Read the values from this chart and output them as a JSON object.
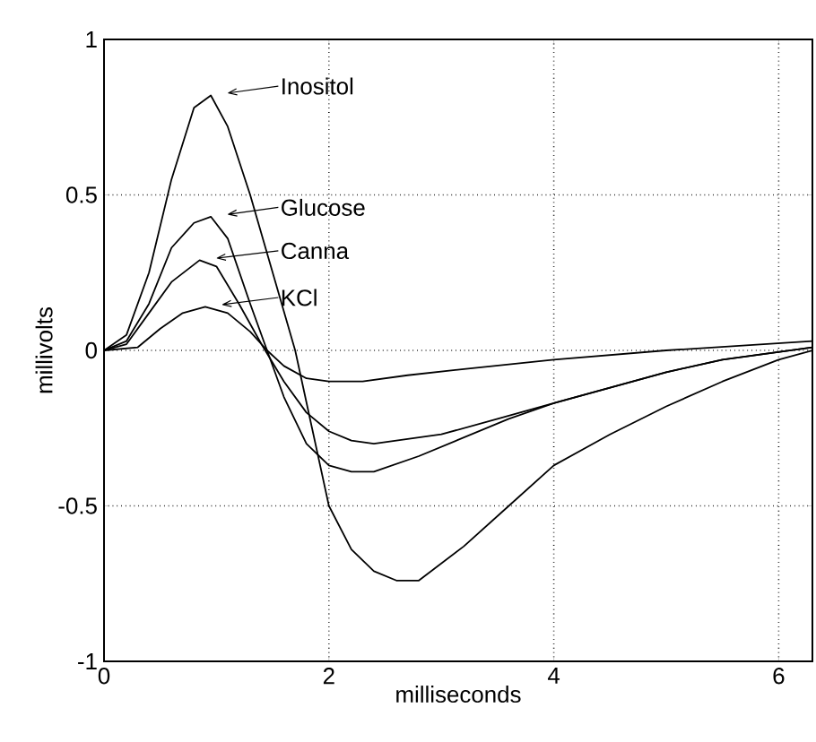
{
  "chart_data": {
    "type": "line",
    "xlabel": "milliseconds",
    "ylabel": "millivolts",
    "xlim": [
      0,
      6.3
    ],
    "ylim": [
      -1,
      1
    ],
    "xticks": [
      0,
      2,
      4,
      6
    ],
    "yticks": [
      -1,
      -0.5,
      0,
      0.5,
      1
    ],
    "grid": true,
    "legend": "top left",
    "line_style": "solid",
    "marker": "none",
    "series": [
      {
        "name": "Inositol",
        "color": "#000000",
        "x": [
          0,
          0.2,
          0.4,
          0.6,
          0.8,
          0.95,
          1.1,
          1.3,
          1.5,
          1.7,
          1.85,
          2.0,
          2.2,
          2.4,
          2.6,
          2.8,
          3.2,
          3.6,
          4,
          4.5,
          5,
          5.5,
          6,
          6.3
        ],
        "values": [
          0,
          0.05,
          0.25,
          0.55,
          0.78,
          0.82,
          0.72,
          0.5,
          0.25,
          0,
          -0.25,
          -0.5,
          -0.64,
          -0.71,
          -0.74,
          -0.74,
          -0.63,
          -0.5,
          -0.37,
          -0.27,
          -0.18,
          -0.1,
          -0.03,
          0
        ]
      },
      {
        "name": "Glucose",
        "color": "#000000",
        "x": [
          0,
          0.2,
          0.4,
          0.6,
          0.8,
          0.95,
          1.1,
          1.3,
          1.45,
          1.6,
          1.8,
          2.0,
          2.2,
          2.4,
          2.8,
          3.2,
          3.6,
          4,
          4.5,
          5,
          5.5,
          6.3
        ],
        "values": [
          0,
          0.03,
          0.15,
          0.33,
          0.41,
          0.43,
          0.36,
          0.15,
          0,
          -0.15,
          -0.3,
          -0.37,
          -0.39,
          -0.39,
          -0.34,
          -0.28,
          -0.22,
          -0.17,
          -0.12,
          -0.07,
          -0.03,
          0.01
        ]
      },
      {
        "name": "Canna",
        "color": "#000000",
        "x": [
          0,
          0.2,
          0.4,
          0.6,
          0.85,
          1.0,
          1.2,
          1.4,
          1.6,
          1.8,
          2.0,
          2.2,
          2.4,
          2.6,
          3.0,
          3.5,
          4,
          4.5,
          5,
          5.5,
          6.3
        ],
        "values": [
          0,
          0.02,
          0.12,
          0.22,
          0.29,
          0.27,
          0.15,
          0.02,
          -0.1,
          -0.2,
          -0.26,
          -0.29,
          -0.3,
          -0.29,
          -0.27,
          -0.22,
          -0.17,
          -0.12,
          -0.07,
          -0.03,
          0.01
        ]
      },
      {
        "name": "KCl",
        "color": "#000000",
        "x": [
          0,
          0.3,
          0.5,
          0.7,
          0.9,
          1.1,
          1.3,
          1.45,
          1.6,
          1.8,
          2.0,
          2.3,
          2.7,
          3.2,
          4,
          5,
          6.3
        ],
        "values": [
          0,
          0.01,
          0.07,
          0.12,
          0.14,
          0.12,
          0.06,
          0,
          -0.05,
          -0.09,
          -0.1,
          -0.1,
          -0.08,
          -0.06,
          -0.03,
          0,
          0.03
        ]
      }
    ]
  }
}
